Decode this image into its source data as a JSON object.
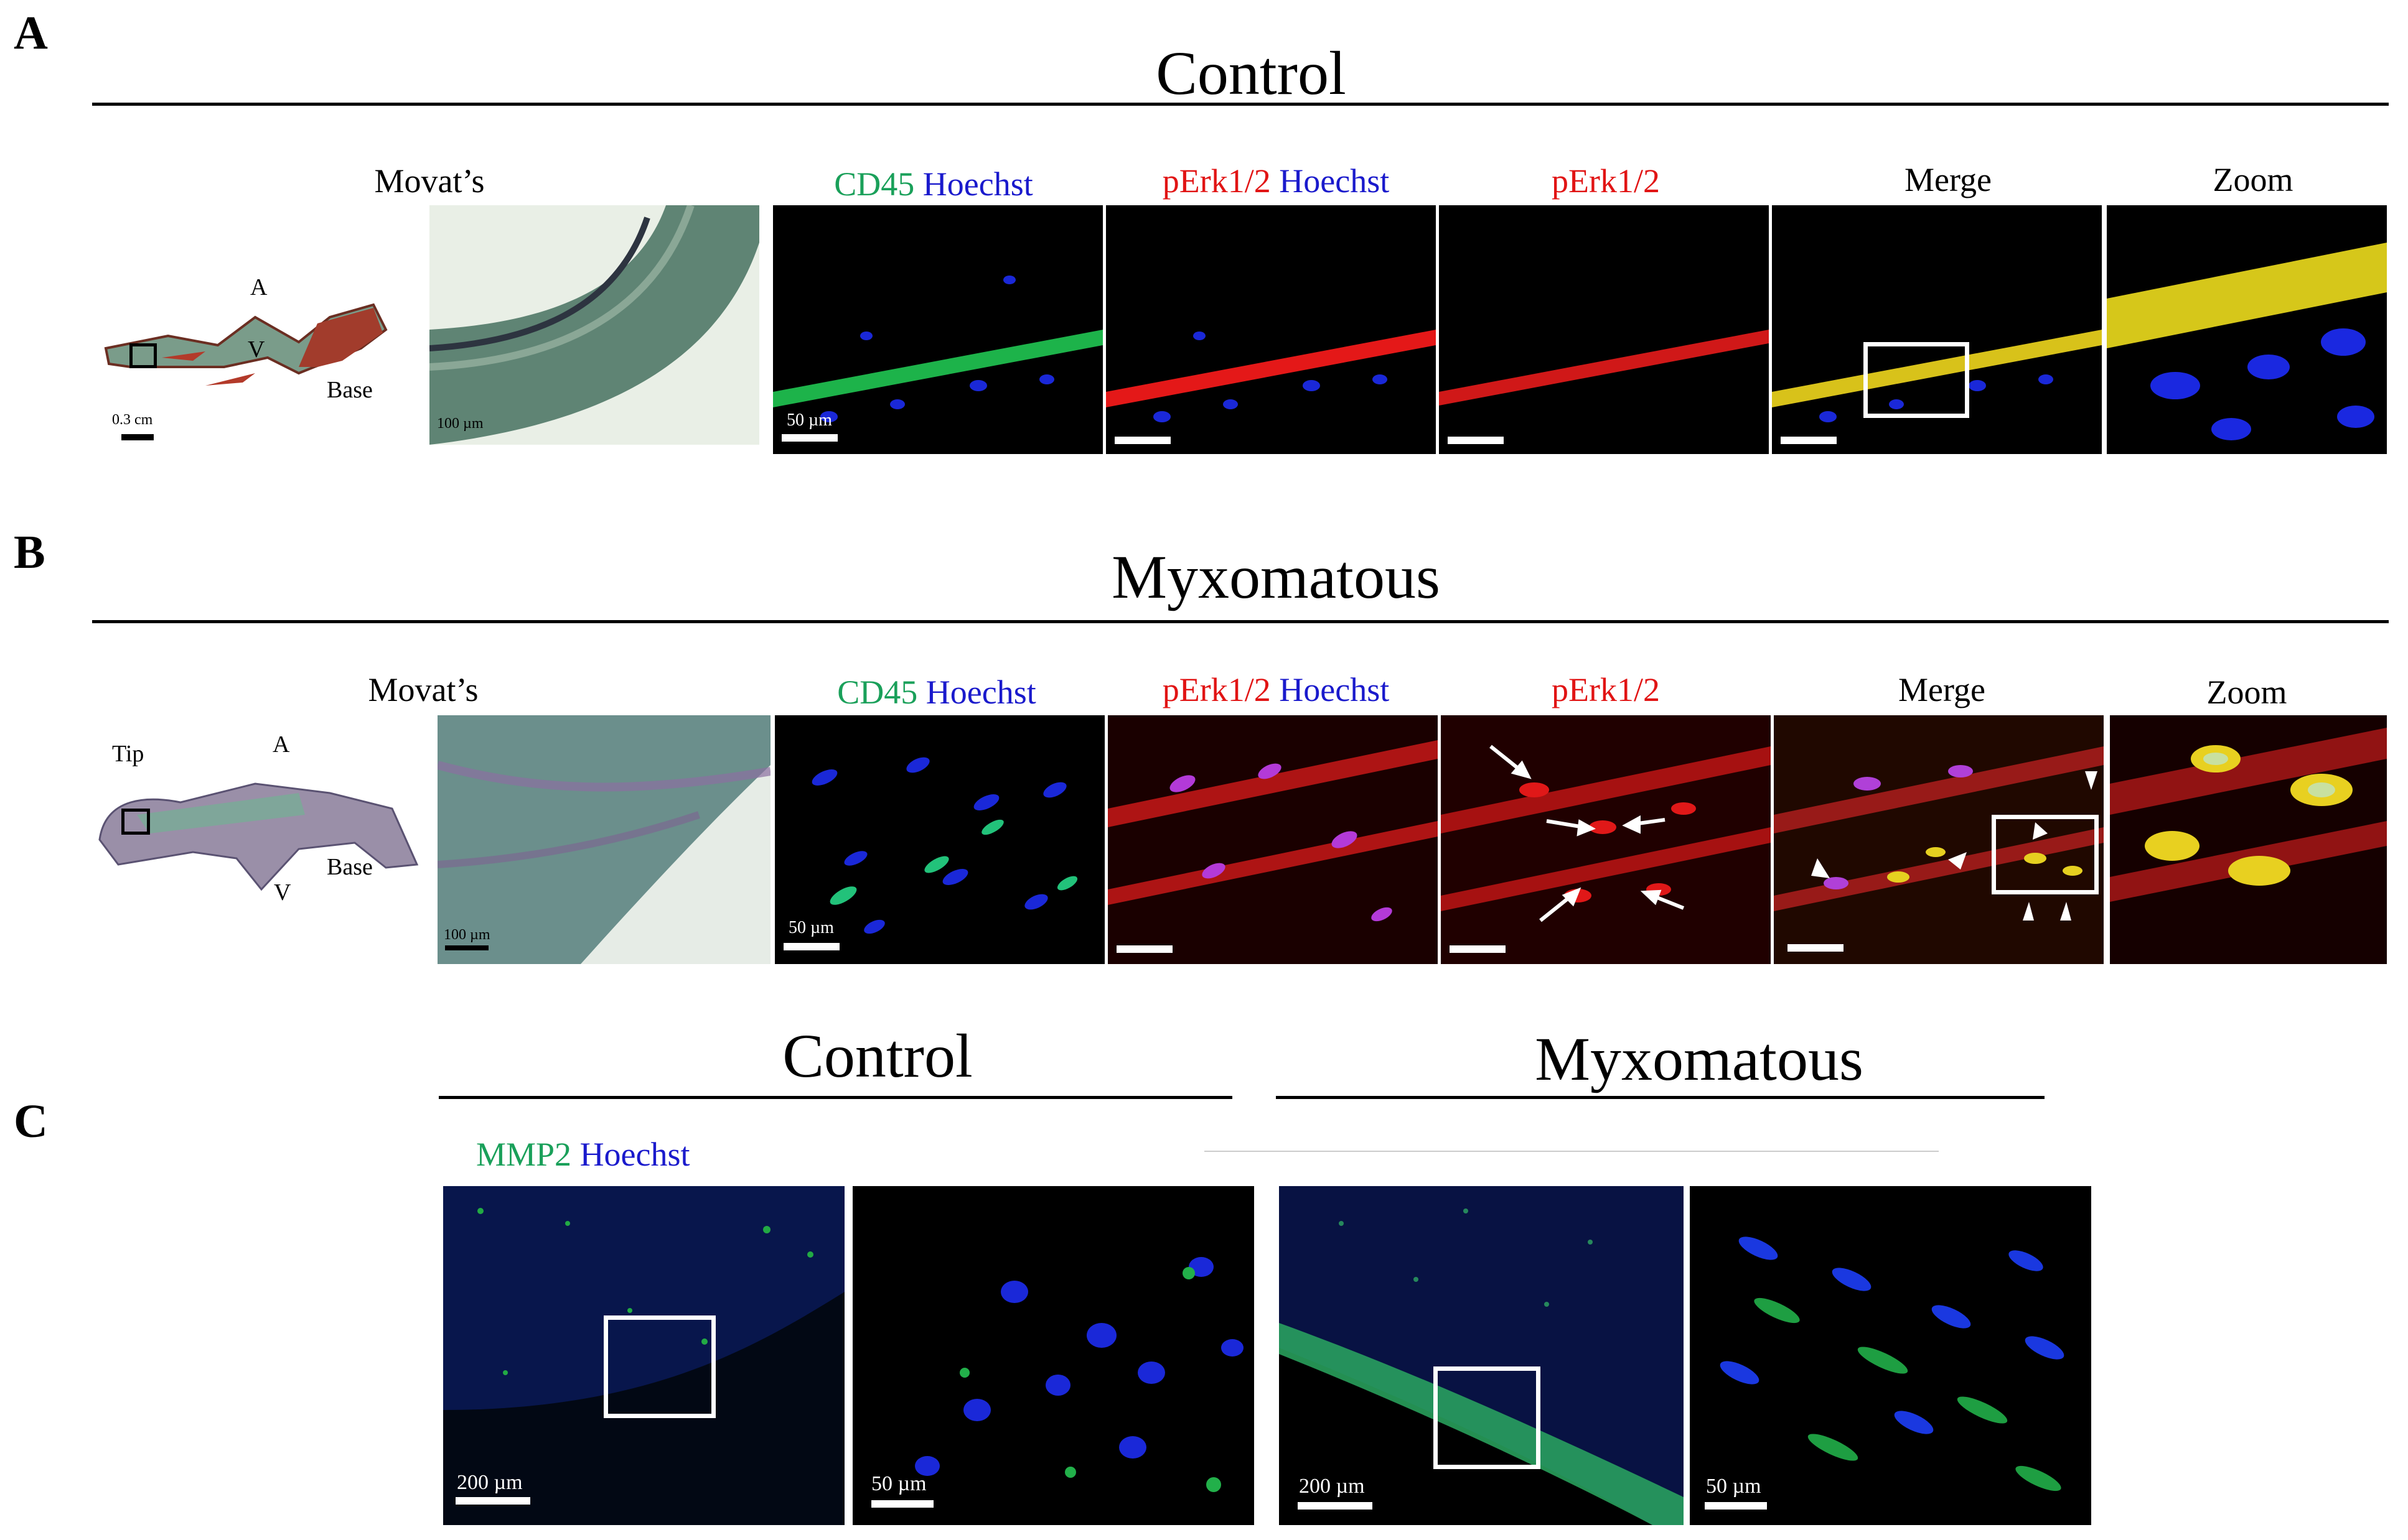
{
  "panels": {
    "A": {
      "letter": "A",
      "title": "Control",
      "headers": {
        "movat": "Movat’s",
        "cd45": "CD45",
        "hoechst": "Hoechst",
        "perk": "pErk1/2",
        "merge": "Merge",
        "zoom": "Zoom"
      },
      "valve_labels": {
        "a": "A",
        "v": "V",
        "base": "Base",
        "scale": "0.3 cm"
      },
      "scale_50": "50 µm",
      "scale_100": "100 µm"
    },
    "B": {
      "letter": "B",
      "title": "Myxomatous",
      "headers": {
        "movat": "Movat’s",
        "cd45": "CD45",
        "hoechst": "Hoechst",
        "perk": "pErk1/2",
        "merge": "Merge",
        "zoom": "Zoom"
      },
      "valve_labels": {
        "tip": "Tip",
        "a": "A",
        "v": "V",
        "base": "Base"
      },
      "scale_50": "50 µm",
      "scale_100": "100 µm"
    },
    "C": {
      "letter": "C",
      "title_control": "Control",
      "title_myxo": "Myxomatous",
      "stain_mmp2": "MMP2",
      "stain_hoechst": "Hoechst",
      "scale_200": "200 µm",
      "scale_50": "50 µm"
    }
  },
  "colors": {
    "cd45": "#1aa05a",
    "hoechst": "#1a1acc",
    "perk": "#e11414"
  }
}
